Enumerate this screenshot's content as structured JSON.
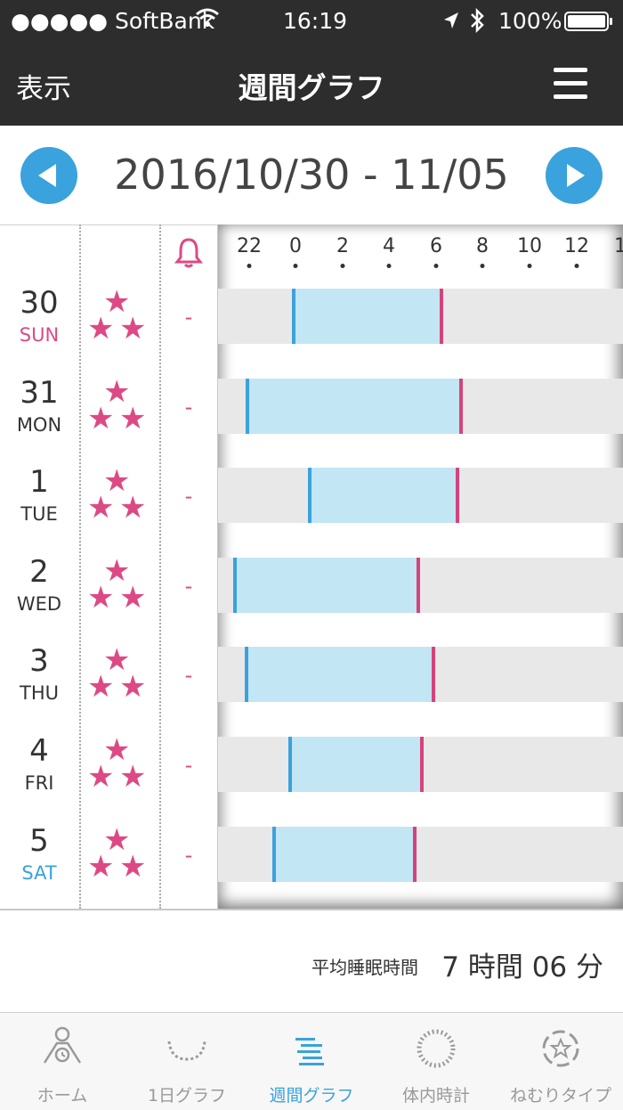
{
  "status_bar": {
    "carrier": "●●●●● SoftBank",
    "time": "16:19",
    "battery": "100%"
  },
  "nav": {
    "left_label": "表示",
    "title": "週間グラフ"
  },
  "date_range": "2016/10/30 - 11/05",
  "chart": {
    "hour_ticks": [
      "22",
      "0",
      "2",
      "4",
      "6",
      "8",
      "10",
      "12",
      "1"
    ]
  },
  "days": [
    {
      "day": "30",
      "weekday": "SUN",
      "alarm": "-",
      "stars": 3
    },
    {
      "day": "31",
      "weekday": "MON",
      "alarm": "-",
      "stars": 3
    },
    {
      "day": "1",
      "weekday": "TUE",
      "alarm": "-",
      "stars": 3
    },
    {
      "day": "2",
      "weekday": "WED",
      "alarm": "-",
      "stars": 3
    },
    {
      "day": "3",
      "weekday": "THU",
      "alarm": "-",
      "stars": 3
    },
    {
      "day": "4",
      "weekday": "FRI",
      "alarm": "-",
      "stars": 3
    },
    {
      "day": "5",
      "weekday": "SAT",
      "alarm": "-",
      "stars": 3
    }
  ],
  "summary": {
    "label": "平均睡眠時間",
    "value": "7 時間 06 分"
  },
  "tabs": [
    {
      "label": "ホーム",
      "icon": "home-icon",
      "active": false
    },
    {
      "label": "1日グラフ",
      "icon": "daily-graph-icon",
      "active": false
    },
    {
      "label": "週間グラフ",
      "icon": "weekly-graph-icon",
      "active": true
    },
    {
      "label": "体内時計",
      "icon": "body-clock-icon",
      "active": false
    },
    {
      "label": "ねむりタイプ",
      "icon": "sleep-type-icon",
      "active": false
    }
  ],
  "colors": {
    "accent_blue": "#3aa2dc",
    "accent_pink": "#dc4a85",
    "sleep_bar": "#c2e6f4",
    "header_bg": "#2d2d2d"
  }
}
